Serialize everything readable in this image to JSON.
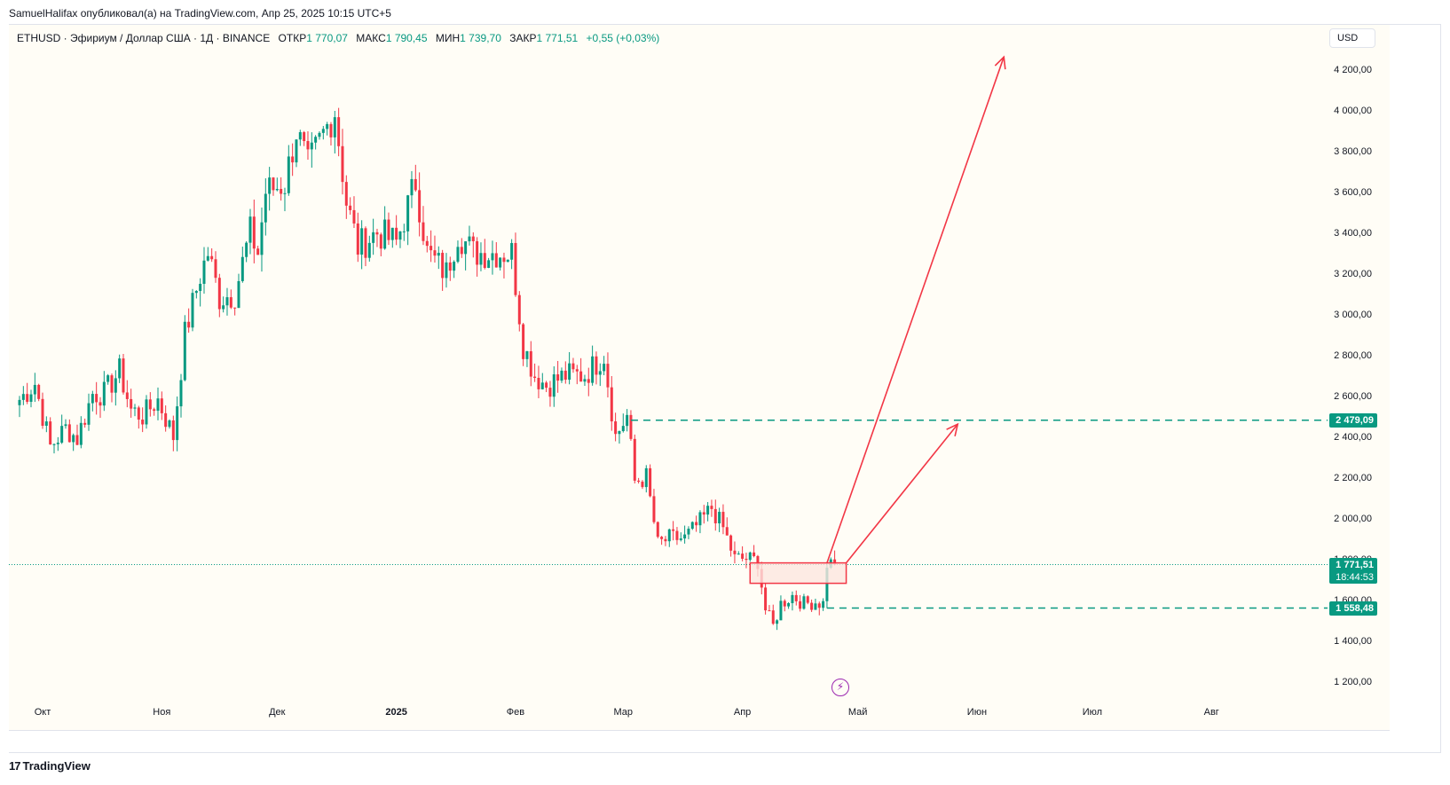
{
  "header": {
    "publisher_line": "SamuelHalifax опубликовал(а) на TradingView.com, Апр 25, 2025 10:15 UTC+5"
  },
  "legend": {
    "symbol": "ETHUSD · Эфириум / Доллар США · 1Д · BINANCE",
    "open_label": "ОТКР",
    "open_value": "1 770,07",
    "high_label": "МАКС",
    "high_value": "1 790,45",
    "low_label": "МИН",
    "low_value": "1 739,70",
    "close_label": "ЗАКР",
    "close_value": "1 771,51",
    "change": "+0,55 (+0,03%)"
  },
  "currency_button": "USD",
  "price_tags": {
    "target": "2 479,09",
    "current_price": "1 771,51",
    "countdown": "18:44:53",
    "stop": "1 558,48"
  },
  "footer": {
    "brand": "TradingView",
    "logo_glyph": "17"
  },
  "colors": {
    "up": "#089981",
    "down": "#f23645",
    "zone_border": "#f23645",
    "zone_fill": "#fde6e0",
    "dashed_line": "#089981",
    "arrow": "#f23645",
    "background": "#fffdf6"
  },
  "chart_data": {
    "type": "candlestick",
    "symbol": "ETHUSD",
    "timeframe": "1D",
    "exchange": "BINANCE",
    "ylim": [
      1100,
      4400
    ],
    "xaxis_label_dates": [
      "2024-10-01",
      "2024-11-01",
      "2024-12-01",
      "2025-01-01",
      "2025-02-01",
      "2025-03-01",
      "2025-04-01",
      "2025-05-01",
      "2025-06-01",
      "2025-07-01",
      "2025-08-01"
    ],
    "x_tick_labels": [
      "Окт",
      "Ноя",
      "Дек",
      "2025",
      "Фев",
      "Мар",
      "Апр",
      "Май",
      "Июн",
      "Июл",
      "Авг"
    ],
    "y_ticks": [
      1200,
      1400,
      1600,
      1800,
      2000,
      2200,
      2400,
      2600,
      2800,
      3000,
      3200,
      3400,
      3600,
      3800,
      4000,
      4200
    ],
    "y_tick_labels": [
      "1 200,00",
      "1 400,00",
      "1 600,00",
      "1 800,00",
      "2 000,00",
      "2 200,00",
      "2 400,00",
      "2 600,00",
      "2 800,00",
      "3 000,00",
      "3 200,00",
      "3 400,00",
      "3 600,00",
      "3 800,00",
      "4 000,00",
      "4 200,00"
    ],
    "close_path": [
      [
        "2024-09-25",
        2580
      ],
      [
        "2024-09-29",
        2660
      ],
      [
        "2024-10-03",
        2350
      ],
      [
        "2024-10-07",
        2440
      ],
      [
        "2024-10-10",
        2390
      ],
      [
        "2024-10-14",
        2610
      ],
      [
        "2024-10-17",
        2610
      ],
      [
        "2024-10-21",
        2720
      ],
      [
        "2024-10-24",
        2530
      ],
      [
        "2024-10-27",
        2500
      ],
      [
        "2024-10-31",
        2580
      ],
      [
        "2024-11-04",
        2400
      ],
      [
        "2024-11-07",
        2900
      ],
      [
        "2024-11-11",
        3190
      ],
      [
        "2024-11-13",
        3300
      ],
      [
        "2024-11-16",
        3080
      ],
      [
        "2024-11-20",
        3100
      ],
      [
        "2024-11-24",
        3400
      ],
      [
        "2024-11-26",
        3300
      ],
      [
        "2024-11-28",
        3600
      ],
      [
        "2024-12-03",
        3640
      ],
      [
        "2024-12-06",
        3900
      ],
      [
        "2024-12-09",
        3720
      ],
      [
        "2024-12-11",
        3800
      ],
      [
        "2024-12-16",
        4000
      ],
      [
        "2024-12-19",
        3550
      ],
      [
        "2024-12-22",
        3330
      ],
      [
        "2024-12-27",
        3400
      ],
      [
        "2025-01-01",
        3350
      ],
      [
        "2025-01-06",
        3650
      ],
      [
        "2025-01-09",
        3300
      ],
      [
        "2025-01-14",
        3200
      ],
      [
        "2025-01-17",
        3400
      ],
      [
        "2025-01-21",
        3300
      ],
      [
        "2025-01-26",
        3300
      ],
      [
        "2025-01-31",
        3300
      ],
      [
        "2025-02-03",
        2850
      ],
      [
        "2025-02-06",
        2700
      ],
      [
        "2025-02-09",
        2650
      ],
      [
        "2025-02-14",
        2700
      ],
      [
        "2025-02-19",
        2700
      ],
      [
        "2025-02-24",
        2800
      ],
      [
        "2025-02-27",
        2400
      ],
      [
        "2025-03-02",
        2500
      ],
      [
        "2025-03-04",
        2180
      ],
      [
        "2025-03-07",
        2200
      ],
      [
        "2025-03-10",
        1870
      ],
      [
        "2025-03-13",
        1900
      ],
      [
        "2025-03-17",
        1900
      ],
      [
        "2025-03-21",
        1980
      ],
      [
        "2025-03-24",
        2050
      ],
      [
        "2025-03-27",
        1950
      ],
      [
        "2025-03-30",
        1800
      ],
      [
        "2025-04-02",
        1800
      ],
      [
        "2025-04-05",
        1790
      ],
      [
        "2025-04-07",
        1550
      ],
      [
        "2025-04-09",
        1470
      ],
      [
        "2025-04-11",
        1580
      ],
      [
        "2025-04-14",
        1620
      ],
      [
        "2025-04-17",
        1580
      ],
      [
        "2025-04-20",
        1590
      ],
      [
        "2025-04-22",
        1580
      ],
      [
        "2025-04-23",
        1780
      ],
      [
        "2025-04-25",
        1771.51
      ]
    ],
    "annotations": {
      "target_level": 2479.09,
      "current_price": 1771.51,
      "stop_level": 1558.48,
      "zone": {
        "from": "2025-04-03",
        "to": "2025-04-28",
        "low": 1680,
        "high": 1780
      },
      "arrow_long": {
        "from": [
          "2025-04-23",
          1780
        ],
        "to": [
          "2025-06-08",
          4260
        ]
      },
      "arrow_short": {
        "from": [
          "2025-04-28",
          1780
        ],
        "to": [
          "2025-05-27",
          2460
        ]
      }
    }
  }
}
